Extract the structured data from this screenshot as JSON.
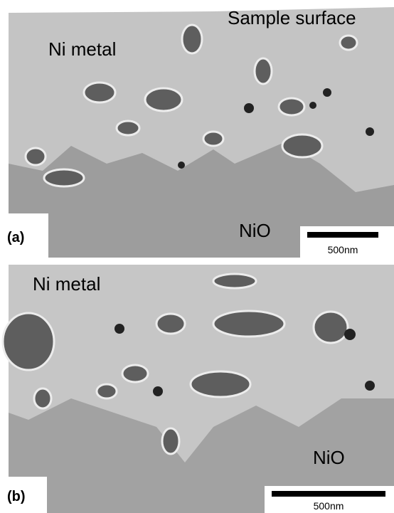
{
  "panels": [
    {
      "label": "(a)",
      "annotations": {
        "surface": "Sample surface",
        "metal": "Ni metal",
        "oxide": "NiO"
      },
      "scale_bar": "500nm"
    },
    {
      "label": "(b)",
      "annotations": {
        "metal": "Ni metal",
        "oxide": "NiO"
      },
      "scale_bar": "500nm"
    }
  ]
}
